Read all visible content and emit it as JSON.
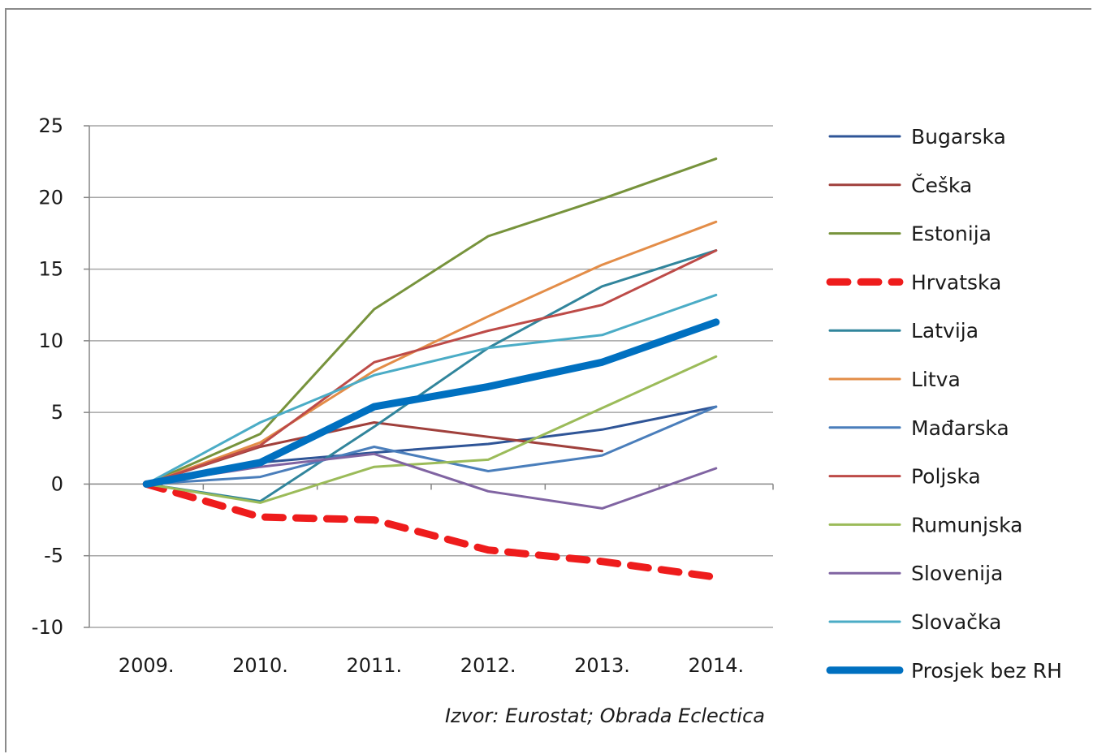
{
  "chart_data": {
    "type": "line",
    "x": [
      "2009.",
      "2010.",
      "2011.",
      "2012.",
      "2013.",
      "2014."
    ],
    "ylim": [
      -10,
      25
    ],
    "yticks": [
      25,
      20,
      15,
      10,
      5,
      0,
      -5,
      -10
    ],
    "grid": true,
    "legend_position": "right",
    "series": [
      {
        "name": "Bugarska",
        "color": "#2f5597",
        "width": 3,
        "dash": false,
        "values": [
          0,
          1.5,
          2.2,
          2.8,
          3.8,
          5.4
        ]
      },
      {
        "name": "Češka",
        "color": "#a0403c",
        "width": 3,
        "dash": false,
        "values": [
          0,
          2.6,
          4.3,
          3.3,
          2.3,
          null
        ]
      },
      {
        "name": "Estonija",
        "color": "#77933c",
        "width": 3,
        "dash": false,
        "values": [
          0,
          3.5,
          12.2,
          17.3,
          19.9,
          22.7
        ]
      },
      {
        "name": "Hrvatska",
        "color": "#ee1c1c",
        "width": 9,
        "dash": true,
        "values": [
          0,
          -2.3,
          -2.5,
          -4.6,
          -5.4,
          -6.5
        ]
      },
      {
        "name": "Latvija",
        "color": "#31859c",
        "width": 3,
        "dash": false,
        "values": [
          0,
          -1.2,
          4.0,
          9.5,
          13.8,
          16.3
        ]
      },
      {
        "name": "Litva",
        "color": "#e38d48",
        "width": 3,
        "dash": false,
        "values": [
          0,
          2.9,
          7.9,
          11.7,
          15.3,
          18.3
        ]
      },
      {
        "name": "Mađarska",
        "color": "#4a7ebb",
        "width": 3,
        "dash": false,
        "values": [
          0,
          0.5,
          2.6,
          0.9,
          2.0,
          5.4
        ]
      },
      {
        "name": "Poljska",
        "color": "#bd4b48",
        "width": 3,
        "dash": false,
        "values": [
          0,
          2.7,
          8.5,
          10.7,
          12.5,
          16.3
        ]
      },
      {
        "name": "Rumunjska",
        "color": "#9bbb59",
        "width": 3,
        "dash": false,
        "values": [
          0,
          -1.3,
          1.2,
          1.7,
          5.3,
          8.9
        ]
      },
      {
        "name": "Slovenija",
        "color": "#8064a2",
        "width": 3,
        "dash": false,
        "values": [
          0,
          1.2,
          2.1,
          -0.5,
          -1.7,
          1.1
        ]
      },
      {
        "name": "Slovačka",
        "color": "#4bacc6",
        "width": 3,
        "dash": false,
        "values": [
          0,
          4.3,
          7.6,
          9.5,
          10.4,
          13.2
        ]
      },
      {
        "name": "Prosjek bez RH",
        "color": "#0070c0",
        "width": 9,
        "dash": false,
        "values": [
          0,
          1.5,
          5.4,
          6.8,
          8.5,
          11.3
        ]
      }
    ],
    "annotation": "Izvor:  Eurostat;  Obrada Eclectica"
  }
}
